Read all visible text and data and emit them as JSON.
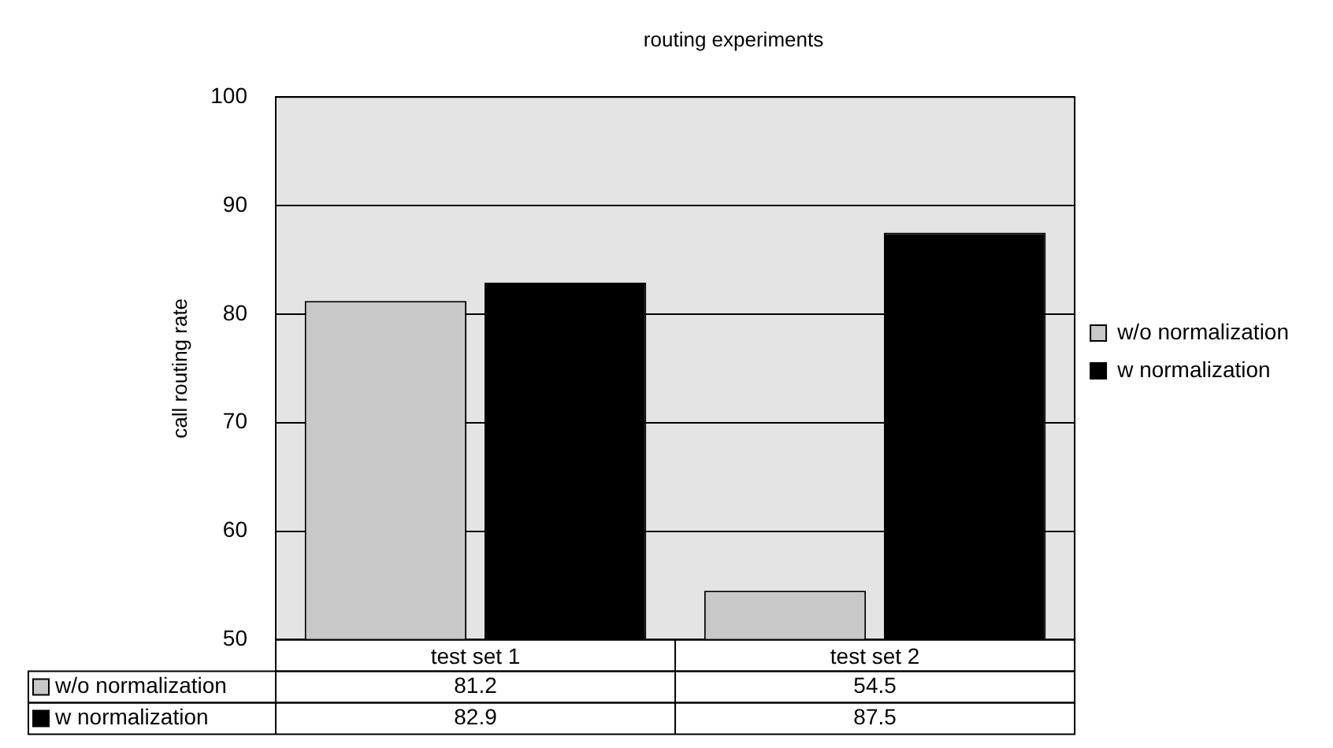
{
  "chart_data": {
    "type": "bar",
    "title": "routing experiments",
    "ylabel": "call routing rate",
    "categories": [
      "test set 1",
      "test set 2"
    ],
    "series": [
      {
        "name": "w/o normalization",
        "color": "#c8c8c8",
        "values": [
          81.2,
          54.5
        ]
      },
      {
        "name": "w normalization",
        "color": "#000000",
        "values": [
          82.9,
          87.5
        ]
      }
    ],
    "ylim": [
      50,
      100
    ],
    "yticks": [
      50,
      60,
      70,
      80,
      90,
      100
    ],
    "grid": "y",
    "legend": "right",
    "data_labels": true
  }
}
